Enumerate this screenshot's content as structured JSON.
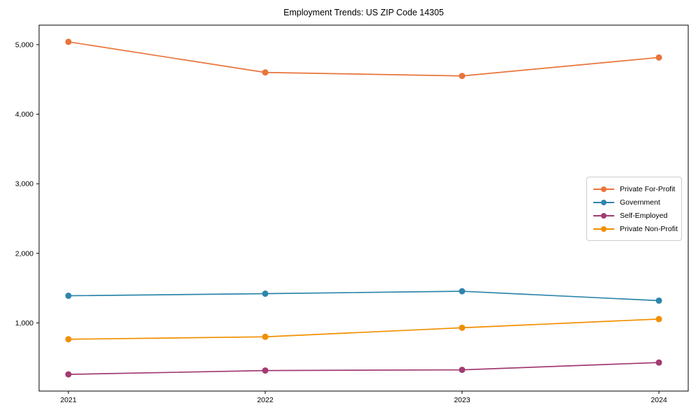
{
  "figure": {
    "background": "#ffffff"
  },
  "chart_data": {
    "type": "line",
    "title": "Employment Trends: US ZIP Code 14305",
    "xlabel": "",
    "ylabel": "",
    "categories": [
      "2021",
      "2022",
      "2023",
      "2024"
    ],
    "series": [
      {
        "name": "Private For-Profit",
        "color": "#e8743b",
        "values": [
          5040,
          4600,
          4550,
          4815
        ]
      },
      {
        "name": "Government",
        "color": "#2e86ab",
        "values": [
          1390,
          1420,
          1455,
          1320
        ]
      },
      {
        "name": "Self-Employed",
        "color": "#a23b72",
        "values": [
          260,
          315,
          325,
          430
        ]
      },
      {
        "name": "Private Non-Profit",
        "color": "#f18f01",
        "values": [
          765,
          800,
          930,
          1055
        ]
      }
    ],
    "y_ticks": [
      {
        "value": 1000,
        "label": "1,000"
      },
      {
        "value": 2000,
        "label": "2,000"
      },
      {
        "value": 3000,
        "label": "3,000"
      },
      {
        "value": 4000,
        "label": "4,000"
      },
      {
        "value": 5000,
        "label": "5,000"
      }
    ],
    "ylim": [
      20,
      5280
    ],
    "grid": false,
    "legend_position": "right-center",
    "marker": "circle",
    "axis_color": "#000000",
    "tick_label_color": "#000000"
  }
}
